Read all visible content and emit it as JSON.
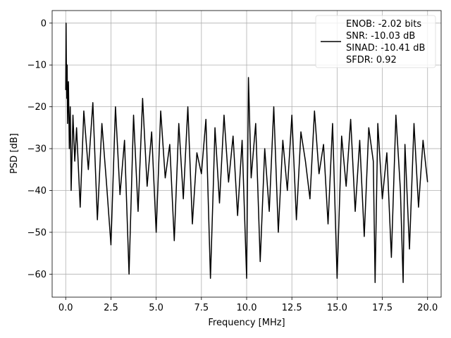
{
  "chart_data": {
    "type": "line",
    "xlabel": "Frequency [MHz]",
    "ylabel": "PSD [dB]",
    "xlim": [
      -0.75,
      20.75
    ],
    "ylim": [
      -65.5,
      3.0
    ],
    "xticks": [
      0.0,
      2.5,
      5.0,
      7.5,
      10.0,
      12.5,
      15.0,
      17.5,
      20.0
    ],
    "xtick_labels": [
      "0.0",
      "2.5",
      "5.0",
      "7.5",
      "10.0",
      "12.5",
      "15.0",
      "17.5",
      "20.0"
    ],
    "yticks": [
      0,
      -10,
      -20,
      -30,
      -40,
      -50,
      -60
    ],
    "ytick_labels": [
      "0",
      "−10",
      "−20",
      "−30",
      "−40",
      "−50",
      "−60"
    ],
    "grid": true,
    "legend_position": "top-right",
    "legend": [
      "ENOB: -2.02 bits",
      "SNR: -10.03 dB",
      "SINAD: -10.41 dB",
      "SFDR: 0.92"
    ],
    "series": [
      {
        "color": "#000000",
        "x": [
          0.0,
          0.02,
          0.04,
          0.06,
          0.08,
          0.1,
          0.15,
          0.2,
          0.25,
          0.3,
          0.4,
          0.5,
          0.6,
          0.8,
          1.0,
          1.25,
          1.5,
          1.75,
          2.0,
          2.25,
          2.5,
          2.75,
          3.0,
          3.25,
          3.5,
          3.75,
          4.0,
          4.25,
          4.5,
          4.75,
          5.0,
          5.25,
          5.5,
          5.75,
          6.0,
          6.25,
          6.5,
          6.75,
          7.0,
          7.25,
          7.5,
          7.75,
          8.0,
          8.15,
          8.25,
          8.5,
          8.75,
          9.0,
          9.25,
          9.5,
          9.75,
          10.0,
          10.1,
          10.25,
          10.5,
          10.75,
          11.0,
          11.25,
          11.5,
          11.75,
          12.0,
          12.25,
          12.5,
          12.75,
          13.0,
          13.25,
          13.5,
          13.75,
          14.0,
          14.25,
          14.5,
          14.75,
          15.0,
          15.25,
          15.5,
          15.75,
          16.0,
          16.25,
          16.5,
          16.75,
          17.0,
          17.1,
          17.25,
          17.5,
          17.75,
          18.0,
          18.25,
          18.5,
          18.65,
          18.75,
          19.0,
          19.25,
          19.5,
          19.75,
          20.0
        ],
        "y": [
          -16,
          0,
          -12,
          -18,
          -10,
          -24,
          -14,
          -30,
          -20,
          -40,
          -22,
          -33,
          -25,
          -44,
          -21,
          -35,
          -19,
          -47,
          -24,
          -38,
          -53,
          -20,
          -41,
          -28,
          -60,
          -22,
          -45,
          -18,
          -39,
          -26,
          -50,
          -21,
          -37,
          -29,
          -52,
          -24,
          -42,
          -20,
          -48,
          -31,
          -36,
          -23,
          -61,
          -40,
          -25,
          -43,
          -22,
          -38,
          -27,
          -46,
          -28,
          -61,
          -13,
          -37,
          -24,
          -57,
          -30,
          -45,
          -20,
          -50,
          -28,
          -40,
          -22,
          -47,
          -26,
          -33,
          -42,
          -21,
          -36,
          -29,
          -48,
          -24,
          -61,
          -27,
          -39,
          -23,
          -45,
          -28,
          -51,
          -25,
          -33,
          -62,
          -24,
          -42,
          -31,
          -56,
          -22,
          -40,
          -62,
          -29,
          -54,
          -24,
          -44,
          -28,
          -38
        ]
      }
    ]
  }
}
